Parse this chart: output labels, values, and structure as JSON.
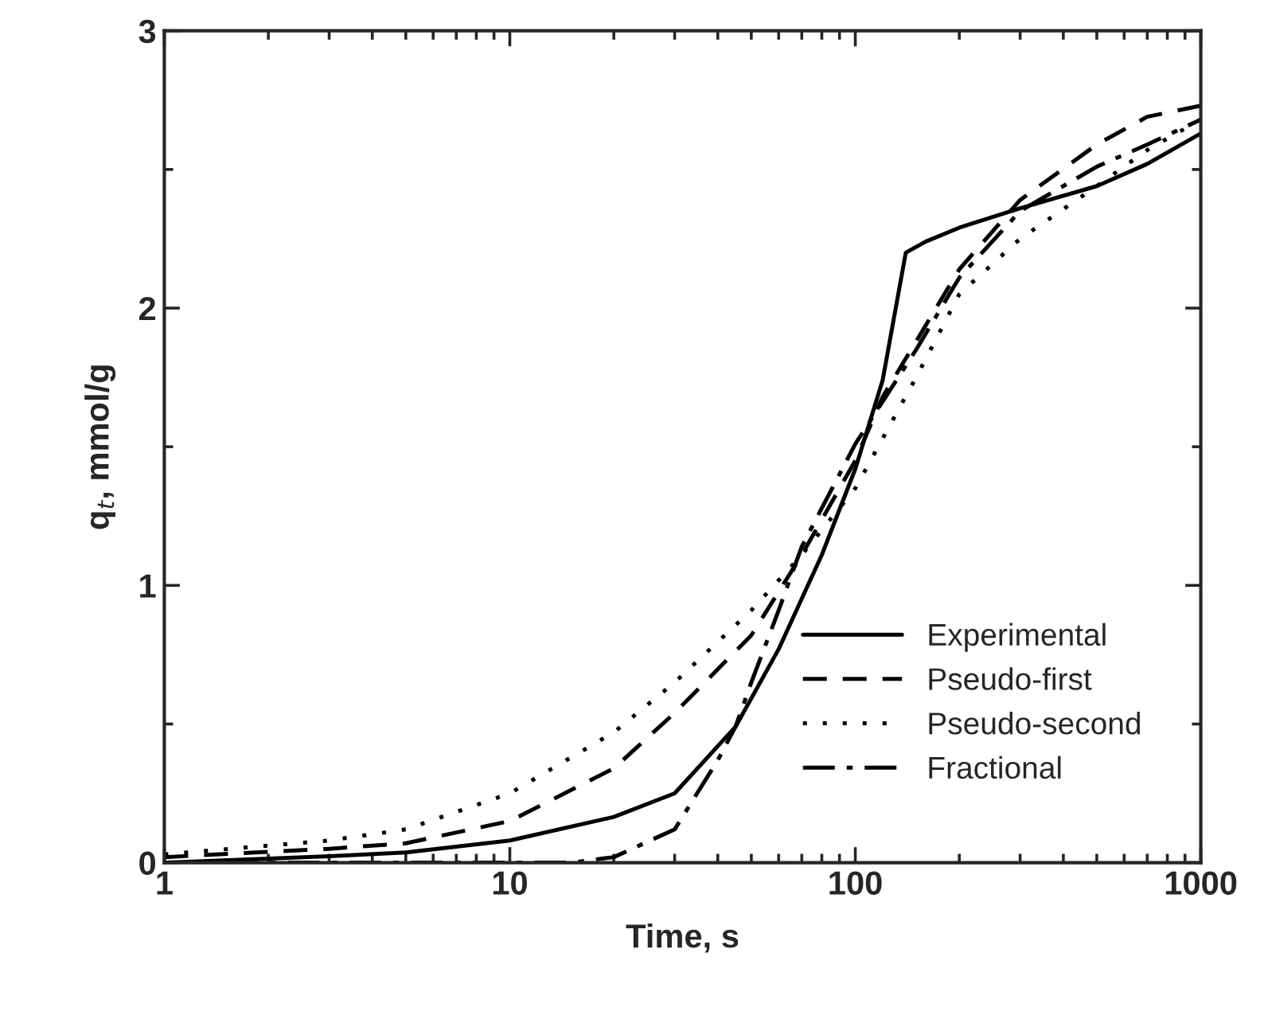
{
  "chart_data": {
    "type": "line",
    "xlabel": "Time, s",
    "ylabel": "q$_{t}$, mmol/g",
    "log": "x",
    "xlim": [
      1,
      1000
    ],
    "xticks": [
      1,
      10,
      100,
      1000
    ],
    "ylim": [
      0,
      3
    ],
    "yticks": [
      0,
      1,
      2,
      3
    ],
    "grid": false,
    "legend": "bottom right",
    "marker": "none",
    "series": [
      {
        "name": "Experimental",
        "color": "#000000",
        "line_style": "solid",
        "x": [
          1,
          3,
          5,
          10,
          20,
          30,
          45,
          60,
          80,
          100,
          120,
          140,
          160,
          200,
          300,
          500,
          700,
          1000
        ],
        "values": [
          0,
          0.023,
          0.037,
          0.08,
          0.165,
          0.25,
          0.49,
          0.77,
          1.11,
          1.42,
          1.74,
          2.2,
          2.24,
          2.29,
          2.36,
          2.44,
          2.52,
          2.63
        ]
      },
      {
        "name": "Pseudo-first",
        "color": "#000000",
        "line_style": "dashed",
        "x": [
          1,
          3,
          5,
          10,
          20,
          30,
          50,
          70,
          100,
          120,
          150,
          200,
          300,
          500,
          700,
          1000
        ],
        "values": [
          0.02,
          0.05,
          0.07,
          0.15,
          0.34,
          0.54,
          0.82,
          1.11,
          1.45,
          1.68,
          1.88,
          2.14,
          2.39,
          2.59,
          2.69,
          2.73
        ]
      },
      {
        "name": "Pseudo-second",
        "color": "#000000",
        "line_style": "dotted",
        "x": [
          1,
          3,
          5,
          10,
          20,
          30,
          50,
          70,
          100,
          150,
          200,
          300,
          500,
          700,
          1000
        ],
        "values": [
          0.03,
          0.08,
          0.12,
          0.25,
          0.47,
          0.65,
          0.91,
          1.11,
          1.35,
          1.75,
          2.05,
          2.25,
          2.44,
          2.57,
          2.68
        ]
      },
      {
        "name": "Fractional",
        "color": "#000000",
        "line_style": "dashdot",
        "x": [
          1,
          10,
          15,
          20,
          30,
          40,
          45,
          50,
          60,
          70,
          100,
          150,
          200,
          300,
          500,
          700,
          1000
        ],
        "values": [
          0,
          0,
          0,
          0.02,
          0.12,
          0.37,
          0.49,
          0.65,
          0.91,
          1.14,
          1.51,
          1.85,
          2.11,
          2.35,
          2.51,
          2.59,
          2.68
        ]
      }
    ]
  }
}
